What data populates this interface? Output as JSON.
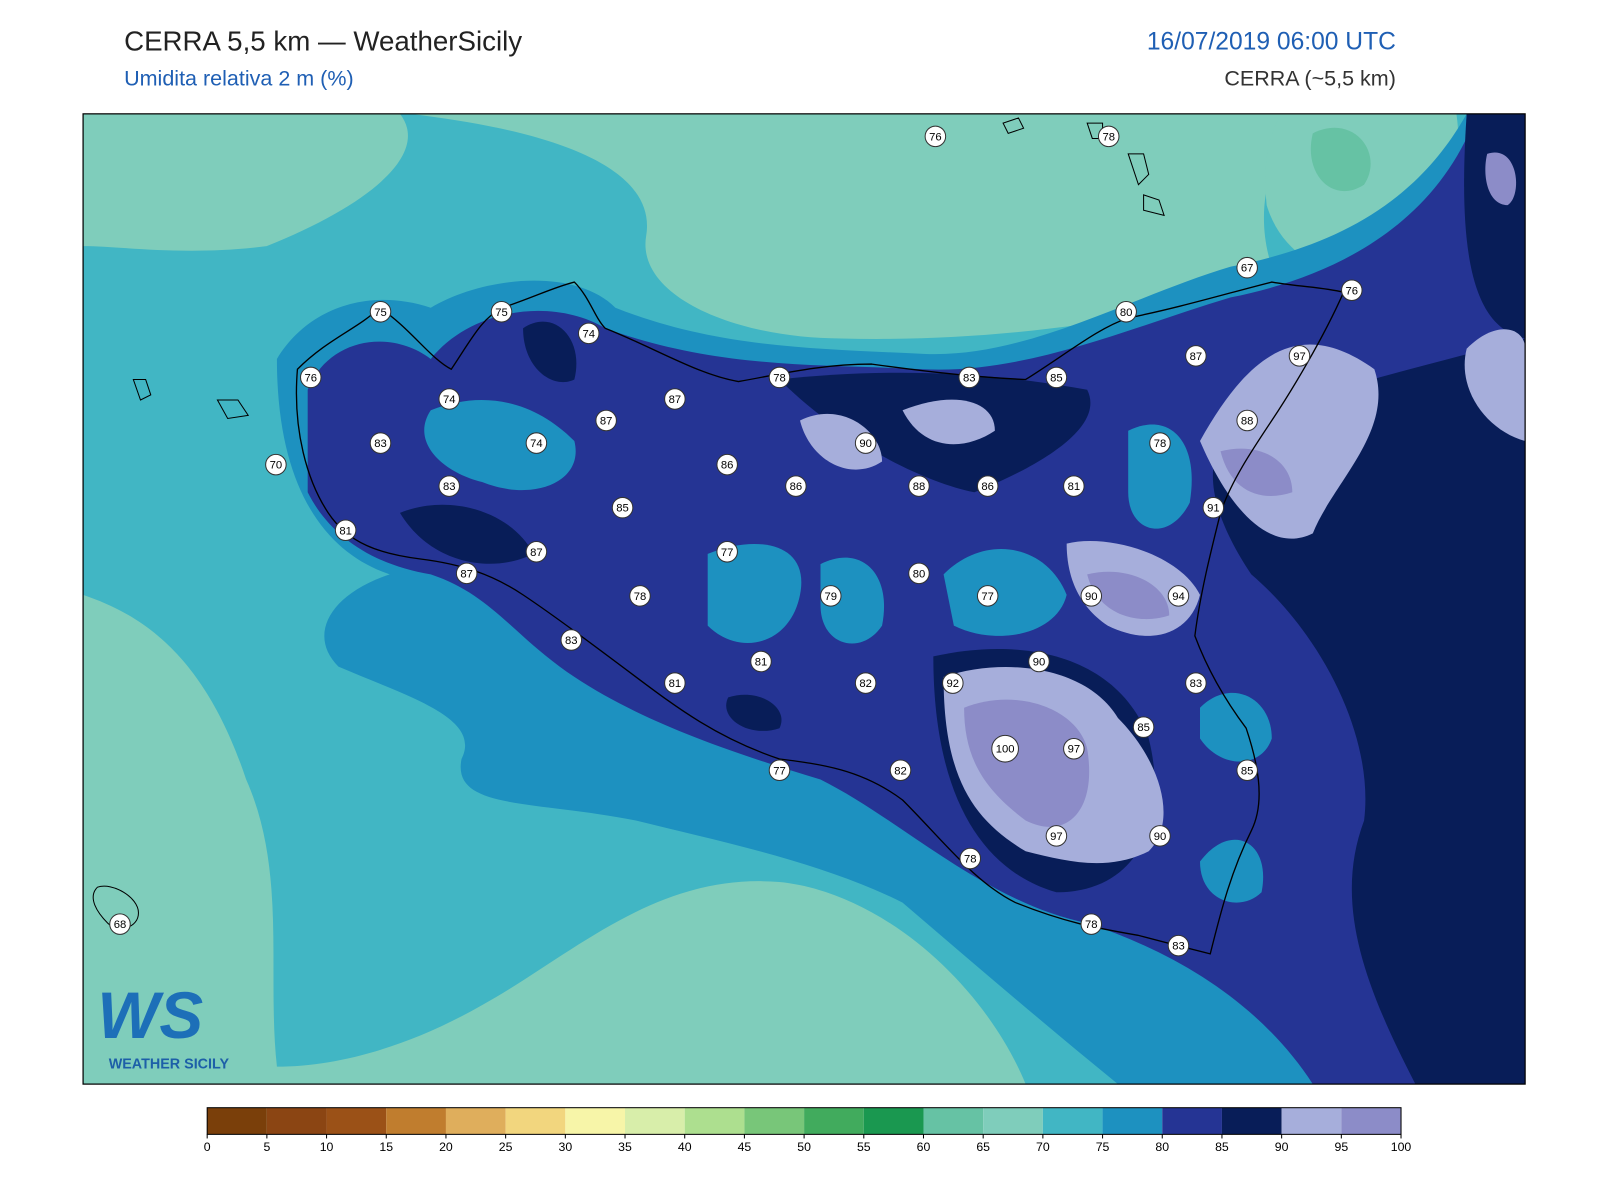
{
  "header": {
    "title": "CERRA 5,5 km — WeatherSicily",
    "subtitle": "Umidita relativa 2 m (%)",
    "valid_time": "16/07/2019 06:00 UTC",
    "model": "CERRA (~5,5 km)"
  },
  "map": {
    "stations": [
      76,
      78,
      67,
      76,
      75,
      75,
      74,
      80,
      87,
      97,
      76,
      74,
      87,
      78,
      83,
      85,
      88,
      83,
      74,
      87,
      90,
      78,
      70,
      86,
      86,
      88,
      86,
      81,
      91,
      83,
      85,
      81,
      87,
      77,
      87,
      78,
      79,
      80,
      77,
      90,
      94,
      83,
      81,
      90,
      81,
      82,
      92,
      83,
      85,
      100,
      97,
      85,
      77,
      82,
      97,
      90,
      78,
      78,
      83,
      68
    ]
  },
  "colorbar": {
    "levels": [
      0,
      5,
      10,
      15,
      20,
      25,
      30,
      35,
      40,
      45,
      50,
      55,
      60,
      65,
      70,
      75,
      80,
      85,
      90,
      95,
      100
    ],
    "colors": [
      "#7a3f0a",
      "#8b4513",
      "#9b5117",
      "#c07d2e",
      "#dfae5c",
      "#f2d67e",
      "#f7f5a8",
      "#d8eeaa",
      "#addf8f",
      "#78c679",
      "#41ab5d",
      "#1a9850",
      "#66c2a4",
      "#7fcdbb",
      "#41b6c4",
      "#1d91c0",
      "#253494",
      "#081d58",
      "#a6aedb",
      "#8c8cc8"
    ]
  },
  "logo": {
    "mark": "WS",
    "text": "WEATHER SICILY"
  }
}
